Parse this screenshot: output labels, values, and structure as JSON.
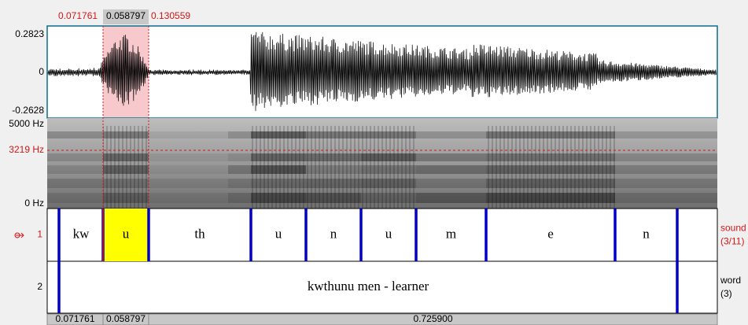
{
  "selection": {
    "left": "0.071761",
    "duration": "0.058797",
    "right": "0.130559"
  },
  "waveform": {
    "max": "0.2823",
    "zero": "0",
    "min": "-0.2628"
  },
  "spectrogram": {
    "max": "5000 Hz",
    "cursor": "3219 Hz",
    "min": "0 Hz"
  },
  "tiers": [
    {
      "number": "1",
      "name": "sound",
      "info": "(3/11)",
      "intervals": [
        "kw",
        "u",
        "th",
        "u",
        "n",
        "u",
        "m",
        "e",
        "n"
      ]
    },
    {
      "number": "2",
      "name": "word",
      "info": "(3)",
      "intervals": [
        "kwthunu men - learner"
      ]
    }
  ],
  "bottom_bar": [
    "0.071761",
    "0.058797",
    "0.725900"
  ]
}
